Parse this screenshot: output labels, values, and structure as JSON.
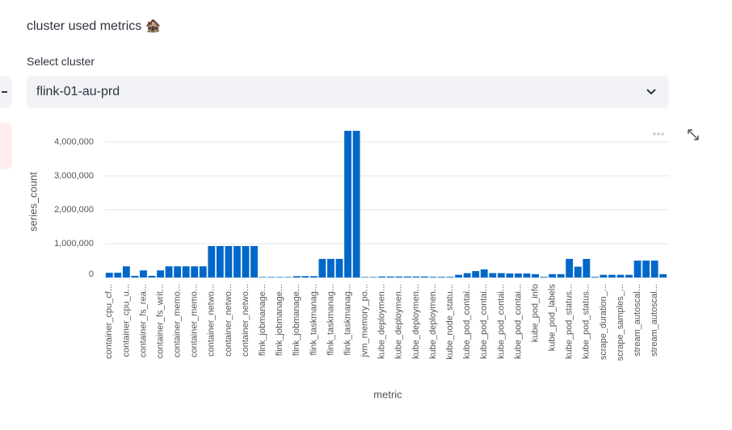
{
  "page": {
    "title": "cluster used metrics 🏚️",
    "select_label": "Select cluster",
    "select_value": "flink-01-au-prd"
  },
  "chart_data": {
    "type": "bar",
    "color": "#0068c9",
    "grid": true,
    "xlabel": "metric",
    "ylabel": "series_count",
    "categories": [
      "container_cpu_cf...",
      null,
      "container_cpu_u...",
      null,
      "container_fs_rea...",
      null,
      "container_fs_writ...",
      null,
      "container_memo...",
      null,
      "container_memo...",
      null,
      "container_netwo...",
      null,
      "container_netwo...",
      null,
      "container_netwo...",
      null,
      "flink_jobmanage...",
      null,
      "flink_jobmanage...",
      null,
      "flink_jobmanage...",
      null,
      "flink_taskmanag...",
      null,
      "flink_taskmanag...",
      null,
      "flink_taskmanag...",
      null,
      "jvm_memory_po...",
      null,
      "kube_deploymen...",
      null,
      "kube_deploymen...",
      null,
      "kube_deploymen...",
      null,
      "kube_deploymen...",
      null,
      "kube_node_statu...",
      null,
      "kube_pod_contai...",
      null,
      "kube_pod_contai...",
      null,
      "kube_pod_contai...",
      null,
      "kube_pod_contai...",
      null,
      "kube_pod_info",
      null,
      "kube_pod_labels",
      null,
      "kube_pod_status...",
      null,
      "kube_pod_status...",
      null,
      "scrape_duration_...",
      null,
      "scrape_samples_...",
      null,
      "stream_autoscal...",
      null,
      "stream_autoscal...",
      null
    ],
    "values": [
      140000,
      140000,
      330000,
      50000,
      210000,
      50000,
      210000,
      330000,
      330000,
      330000,
      330000,
      330000,
      930000,
      930000,
      930000,
      930000,
      930000,
      930000,
      15000,
      15000,
      15000,
      15000,
      40000,
      40000,
      40000,
      550000,
      550000,
      550000,
      4330000,
      4330000,
      15000,
      15000,
      30000,
      30000,
      30000,
      30000,
      30000,
      30000,
      20000,
      20000,
      20000,
      80000,
      130000,
      190000,
      240000,
      130000,
      130000,
      120000,
      120000,
      120000,
      100000,
      20000,
      100000,
      100000,
      550000,
      320000,
      550000,
      20000,
      80000,
      80000,
      80000,
      80000,
      500000,
      500000,
      500000,
      100000
    ],
    "ylim": [
      0,
      4400000
    ],
    "yticks": [
      0,
      {
        "value": 1000000,
        "label": "1,000,000"
      },
      {
        "value": 2000000,
        "label": "2,000,000"
      },
      {
        "value": 3000000,
        "label": "3,000,000"
      },
      {
        "value": 4000000,
        "label": "4,000,000"
      }
    ]
  }
}
